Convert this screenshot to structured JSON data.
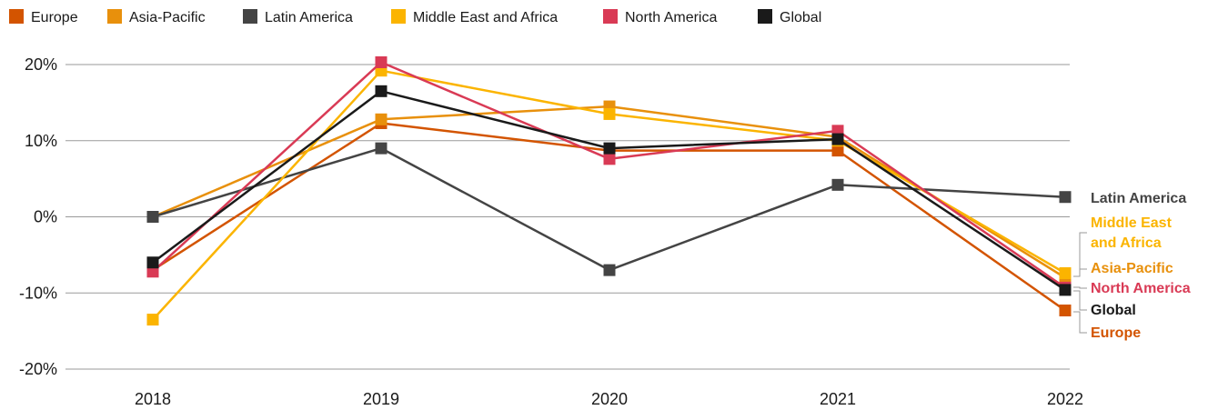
{
  "chart_data": {
    "type": "line",
    "x": [
      "2018",
      "2019",
      "2020",
      "2021",
      "2022"
    ],
    "y_ticks": [
      20,
      10,
      0,
      -10,
      -20
    ],
    "y_tick_labels": [
      "20%",
      "10%",
      "0%",
      "-10%",
      "-20%"
    ],
    "ylim": [
      -20,
      20
    ],
    "grid": "horizontal",
    "legend_position": "top-left",
    "series": [
      {
        "name": "Europe",
        "color": "#d35400",
        "values": [
          -7.0,
          12.3,
          8.7,
          8.7,
          -12.3
        ],
        "end_label": "Europe"
      },
      {
        "name": "Asia-Pacific",
        "color": "#e8900c",
        "values": [
          0.0,
          12.8,
          14.5,
          10.5,
          -8.0
        ],
        "end_label": "Asia-Pacific"
      },
      {
        "name": "Latin America",
        "color": "#444444",
        "values": [
          0.0,
          9.0,
          -7.0,
          4.2,
          2.6
        ],
        "end_label": "Latin America"
      },
      {
        "name": "Middle East and Africa",
        "color": "#fbb400",
        "values": [
          -13.5,
          19.2,
          13.5,
          10.0,
          -7.4
        ],
        "end_label_lines": [
          "Middle East",
          "and Africa"
        ]
      },
      {
        "name": "North America",
        "color": "#d93a55",
        "values": [
          -7.2,
          20.3,
          7.6,
          11.3,
          -9.3
        ],
        "end_label": "North America"
      },
      {
        "name": "Global",
        "color": "#1a1a1a",
        "values": [
          -6.0,
          16.5,
          9.0,
          10.2,
          -9.6
        ],
        "end_label": "Global"
      }
    ]
  }
}
